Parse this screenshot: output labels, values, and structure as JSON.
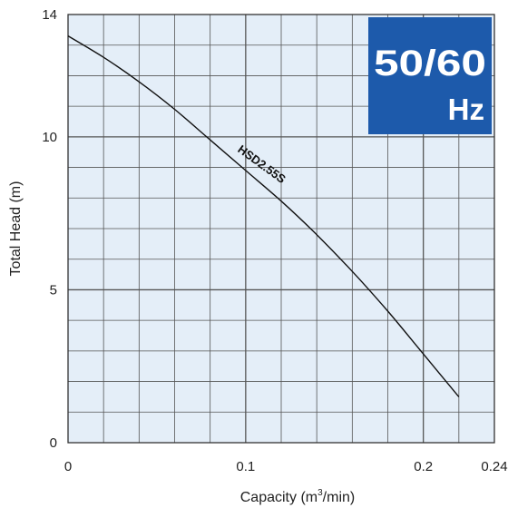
{
  "chart_data": {
    "type": "line",
    "xlabel": "Capacity (m",
    "xlabel_sup": "3",
    "xlabel_tail": "/min)",
    "ylabel": "Total Head (m)",
    "xlim": [
      0,
      0.24
    ],
    "ylim": [
      0,
      14
    ],
    "x_ticks": [
      {
        "value": 0,
        "label": "0"
      },
      {
        "value": 0.1,
        "label": "0.1"
      },
      {
        "value": 0.2,
        "label": "0.2"
      },
      {
        "value": 0.24,
        "label": "0.24"
      }
    ],
    "y_ticks": [
      {
        "value": 0,
        "label": "0"
      },
      {
        "value": 5,
        "label": "5"
      },
      {
        "value": 10,
        "label": "10"
      },
      {
        "value": 14,
        "label": "14"
      }
    ],
    "grid": true,
    "series": [
      {
        "name": "HSD2.55S",
        "x": [
          0,
          0.02,
          0.04,
          0.06,
          0.08,
          0.1,
          0.12,
          0.14,
          0.16,
          0.18,
          0.2,
          0.22
        ],
        "y": [
          13.3,
          12.6,
          11.8,
          10.9,
          9.9,
          8.9,
          7.9,
          6.8,
          5.6,
          4.3,
          2.9,
          1.5
        ]
      }
    ],
    "frequency_badge": {
      "main": "50/60",
      "unit": "Hz",
      "color": "#1d5aab"
    }
  },
  "colors": {
    "plot_background": "#e4eef8",
    "grid_line": "#555555",
    "curve": "#111111"
  }
}
